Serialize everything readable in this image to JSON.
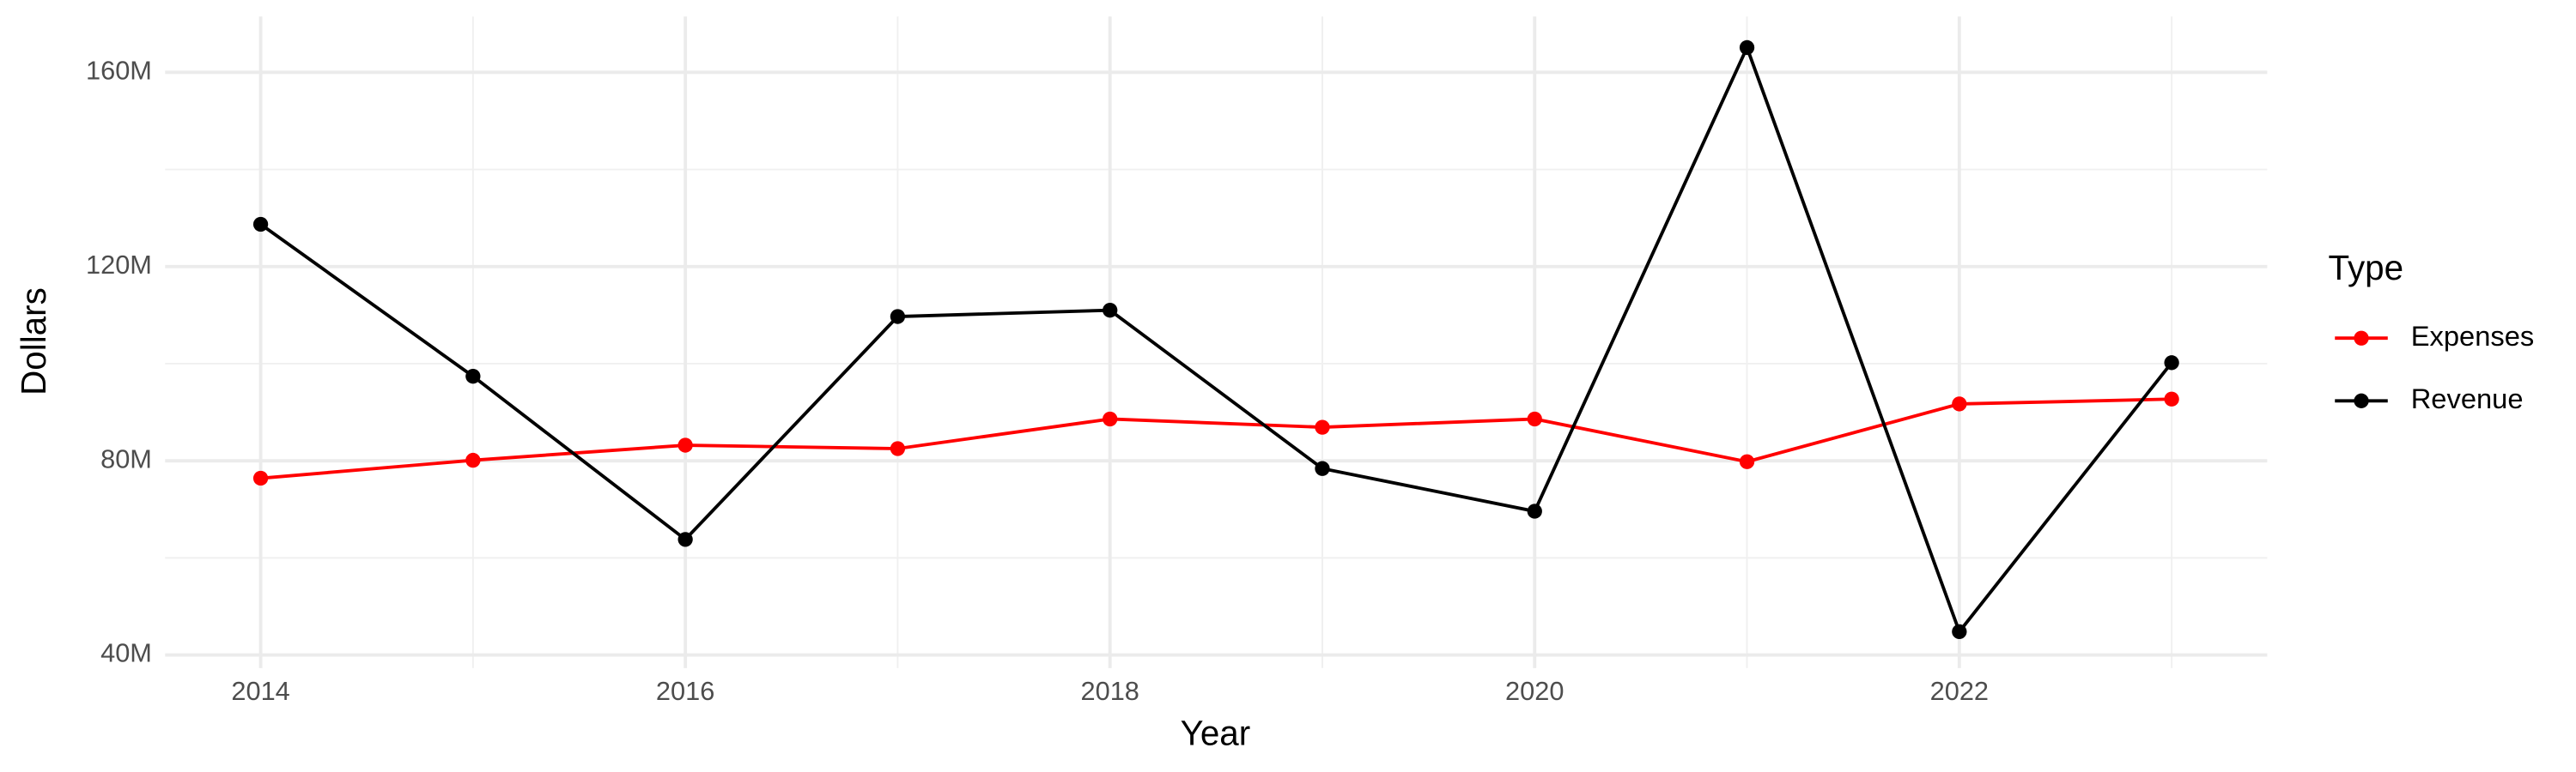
{
  "chart_data": {
    "type": "line",
    "x_label": "Year",
    "y_label": "Dollars",
    "legend_title": "Type",
    "legend_position": "right",
    "grid": true,
    "x": [
      2014,
      2015,
      2016,
      2017,
      2018,
      2019,
      2020,
      2021,
      2022,
      2023
    ],
    "series": [
      {
        "name": "Expenses",
        "color": "#ff0000",
        "values": [
          76400000,
          80100000,
          83200000,
          82500000,
          88600000,
          86900000,
          88600000,
          79800000,
          91700000,
          92700000
        ]
      },
      {
        "name": "Revenue",
        "color": "#000000",
        "values": [
          128700000,
          97400000,
          63800000,
          109700000,
          111000000,
          78400000,
          69600000,
          165100000,
          44800000,
          100200000
        ]
      }
    ],
    "xlim": [
      2013.55,
      2023.45
    ],
    "xticks": [
      2014,
      2016,
      2018,
      2020,
      2022
    ],
    "ylim": [
      37300000,
      171500000
    ],
    "yticks": [
      {
        "value": 40000000,
        "label": "40M"
      },
      {
        "value": 80000000,
        "label": "80M"
      },
      {
        "value": 120000000,
        "label": "120M"
      },
      {
        "value": 160000000,
        "label": "160M"
      }
    ]
  }
}
